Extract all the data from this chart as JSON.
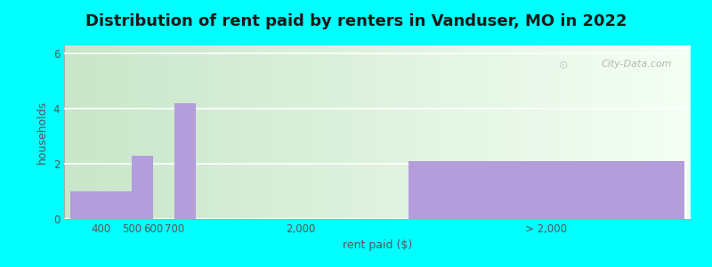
{
  "title": "Distribution of rent paid by renters in Vanduser, MO in 2022",
  "xlabel": "rent paid ($)",
  "ylabel": "households",
  "background_color": "#00FFFF",
  "bar_color": "#b39ddb",
  "ylim": [
    0,
    6.3
  ],
  "yticks": [
    0,
    2,
    4,
    6
  ],
  "title_fontsize": 13,
  "axis_label_fontsize": 9,
  "tick_fontsize": 8.5,
  "bars": [
    {
      "x_left": 0.0,
      "x_right": 1.0,
      "height": 1.0
    },
    {
      "x_left": 1.0,
      "x_right": 1.35,
      "height": 2.3
    },
    {
      "x_left": 1.35,
      "x_right": 1.7,
      "height": 0.0
    },
    {
      "x_left": 1.7,
      "x_right": 2.05,
      "height": 4.2
    },
    {
      "x_left": 5.5,
      "x_right": 10.0,
      "height": 2.1
    }
  ],
  "xtick_positions": [
    0.5,
    1.0,
    1.35,
    1.7,
    3.75,
    7.75
  ],
  "xtick_labels": [
    "400",
    "500",
    "600",
    "700",
    "2,000",
    "> 2,000"
  ],
  "xlim": [
    -0.1,
    10.1
  ],
  "watermark": "City-Data.com",
  "grid_color": "#cccccc",
  "gradient_left_color": "#d4edda",
  "gradient_right_color": "#f0f8f0"
}
